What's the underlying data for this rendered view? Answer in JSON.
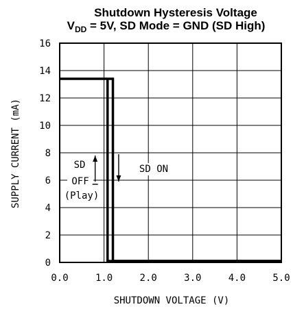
{
  "chart_data": {
    "type": "line",
    "title_line1": "Shutdown Hysteresis Voltage",
    "title_line2": {
      "prefix": "V",
      "subscript": "DD",
      "suffix": " = 5V, SD Mode = GND (SD High)"
    },
    "xlabel": "SHUTDOWN VOLTAGE (V)",
    "ylabel": "SUPPLY CURRENT (mA)",
    "xlim": [
      0,
      5
    ],
    "ylim": [
      0,
      16
    ],
    "xticks": [
      0,
      1,
      2,
      3,
      4,
      5
    ],
    "xtick_labels": [
      "0.0",
      "1.0",
      "2.0",
      "3.0",
      "4.0",
      "5.0"
    ],
    "yticks": [
      0,
      2,
      4,
      6,
      8,
      10,
      12,
      14,
      16
    ],
    "ytick_labels": [
      "0",
      "2",
      "4",
      "6",
      "8",
      "10",
      "12",
      "14",
      "16"
    ],
    "grid": true,
    "series": [
      {
        "x": [
          0,
          1.2,
          1.2,
          5
        ],
        "y": [
          13.4,
          13.4,
          0.1,
          0.1
        ]
      },
      {
        "x": [
          1.08,
          1.08,
          5
        ],
        "y": [
          13.4,
          0.1,
          0.1
        ]
      }
    ],
    "annotations": {
      "sd_left": "SD",
      "off": "OFF",
      "play": "(Play)",
      "sd_on": "SD ON"
    },
    "arrow_up": {
      "x": 0.8,
      "y_from": 5.9,
      "y_to": 7.8
    },
    "arrow_down": {
      "x": 1.33,
      "y_from": 7.9,
      "y_to": 5.9
    }
  }
}
